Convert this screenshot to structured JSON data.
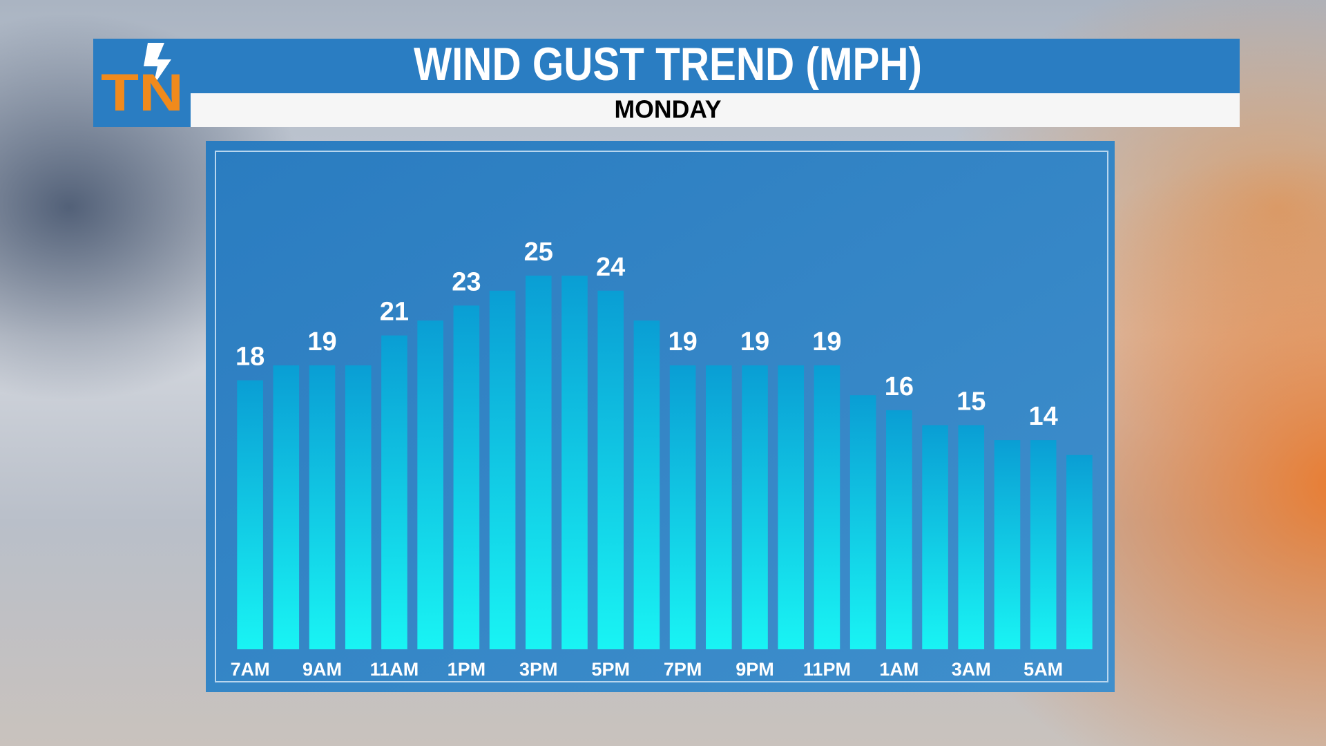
{
  "logo": "TN",
  "chart_data": {
    "type": "bar",
    "title": "WIND GUST TREND (MPH)",
    "subtitle": "MONDAY",
    "categories": [
      "7AM",
      null,
      "9AM",
      null,
      "11AM",
      null,
      "1PM",
      null,
      "3PM",
      null,
      "5PM",
      null,
      "7PM",
      null,
      "9PM",
      null,
      "11PM",
      null,
      "1AM",
      null,
      "3AM",
      null,
      "5AM",
      null
    ],
    "values": [
      18,
      19,
      19,
      19,
      21,
      22,
      23,
      24,
      25,
      25,
      24,
      22,
      19,
      19,
      19,
      19,
      19,
      17,
      16,
      15,
      15,
      14,
      14,
      13
    ],
    "color": "#0a9ed4",
    "ylim": [
      0,
      33
    ]
  }
}
